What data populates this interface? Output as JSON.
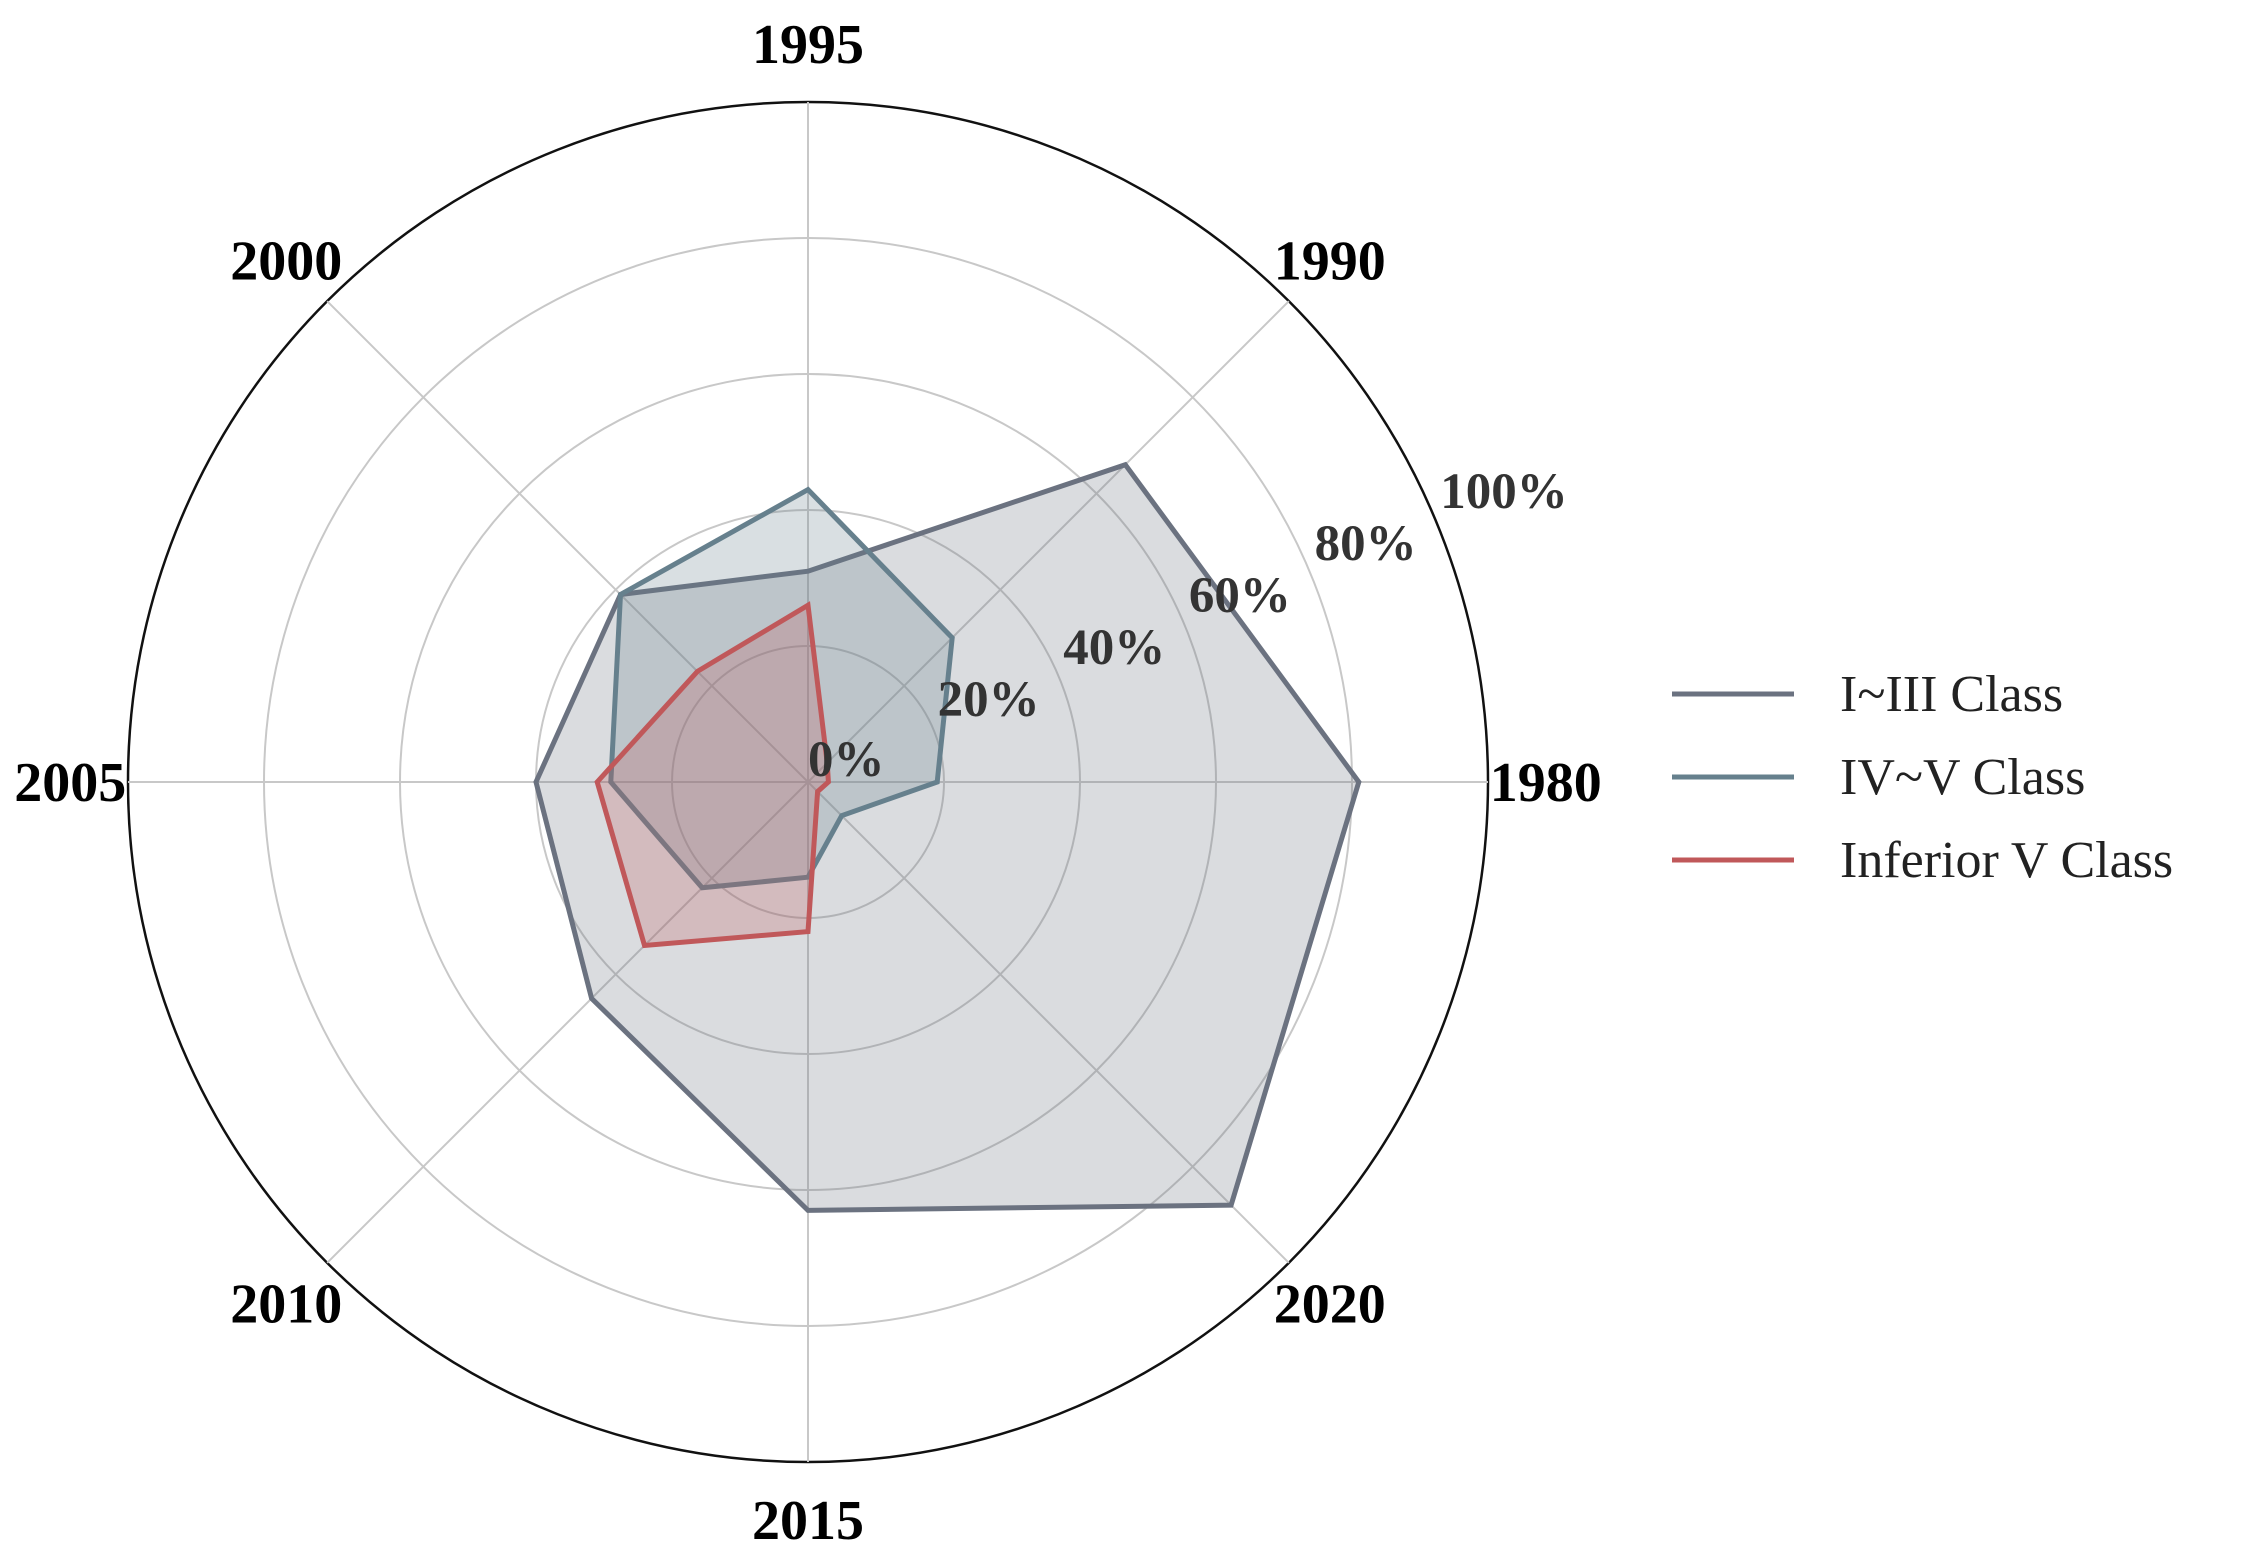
{
  "chart_data": {
    "type": "radar",
    "categories": [
      "1980",
      "1990",
      "1995",
      "2000",
      "2005",
      "2010",
      "2015",
      "2020"
    ],
    "rlim": [
      0,
      100
    ],
    "radial_ticks": [
      0,
      20,
      40,
      60,
      80,
      100
    ],
    "radial_tick_labels": [
      "0%",
      "20%",
      "40%",
      "60%",
      "80%",
      "100%"
    ],
    "grid": true,
    "legend_position": "right",
    "series": [
      {
        "name": "I~III Class",
        "values": [
          81,
          66,
          31,
          39,
          40,
          45,
          63,
          88
        ],
        "color": "#6b7280"
      },
      {
        "name": "IV~V Class",
        "values": [
          19,
          30,
          43,
          39,
          29,
          22,
          14,
          7
        ],
        "color": "#66808d"
      },
      {
        "name": "Inferior V Class",
        "values": [
          3,
          4,
          26,
          23,
          31,
          34,
          22,
          2
        ],
        "color": "#c0585a"
      }
    ]
  }
}
